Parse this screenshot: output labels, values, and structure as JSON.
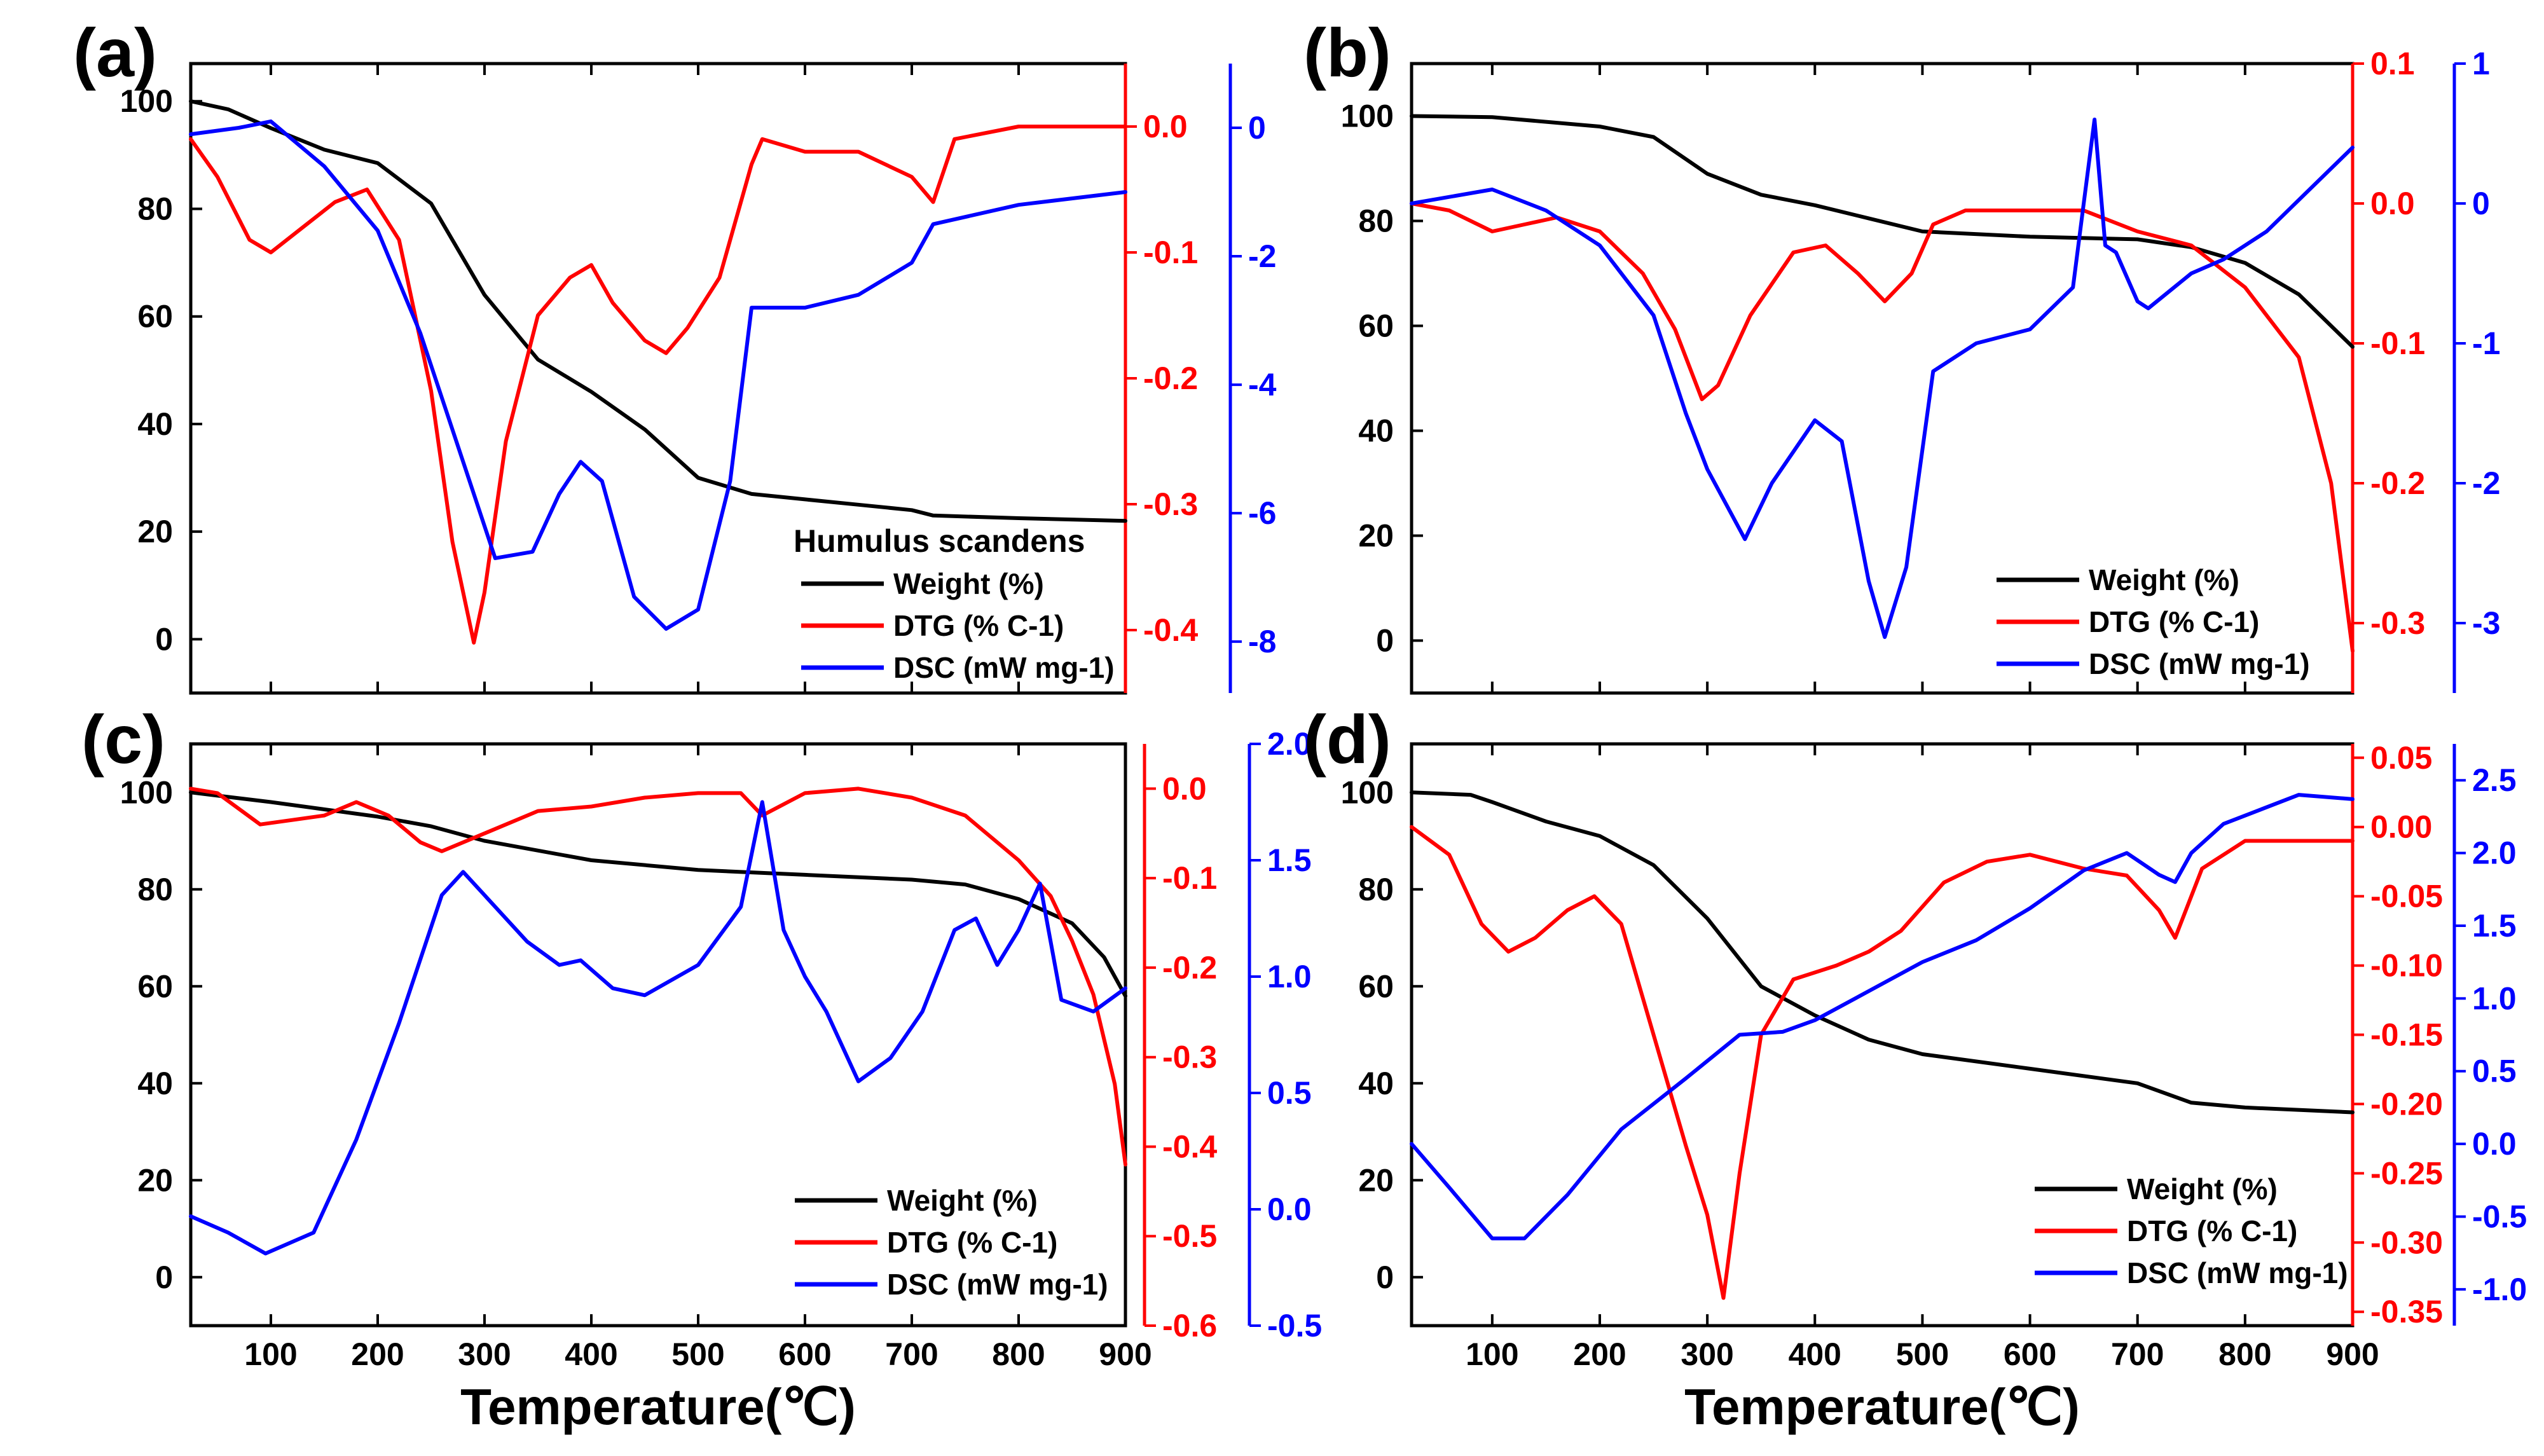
{
  "figure": {
    "x_title_left": "Temperature(℃)",
    "x_title_right": "Temperature(℃)"
  },
  "colors": {
    "weight": "#000000",
    "dtg": "#ff0000",
    "dsc": "#0000ff"
  },
  "chart_data": [
    {
      "type": "line",
      "panel": "(a)",
      "legend_title": "Humulus scandens",
      "legend": [
        "Weight (%)",
        "DTG (% C-1)",
        "DSC (mW mg-1)"
      ],
      "xlim": [
        25,
        900
      ],
      "x_ticks": [
        100,
        200,
        300,
        400,
        500,
        600,
        700,
        800,
        900
      ],
      "x_tick_labels": [],
      "left_axis": {
        "ylim": [
          -10,
          107
        ],
        "ticks": [
          0,
          20,
          40,
          60,
          80,
          100
        ]
      },
      "dtg_axis": {
        "ylim": [
          -0.45,
          0.05
        ],
        "ticks": [
          -0.4,
          -0.3,
          -0.2,
          -0.1,
          0.0
        ],
        "tick_labels": [
          "-0.4",
          "-0.3",
          "-0.2",
          "-0.1",
          "0.0"
        ]
      },
      "dsc_axis": {
        "ylim": [
          -8.8,
          1.0
        ],
        "ticks": [
          -8,
          -6,
          -4,
          -2,
          0
        ],
        "tick_labels": [
          "-8",
          "-6",
          "-4",
          "-2",
          "0"
        ]
      },
      "series": [
        {
          "name": "Weight (%)",
          "axis": "left",
          "x": [
            25,
            60,
            100,
            150,
            200,
            250,
            300,
            350,
            400,
            450,
            500,
            550,
            600,
            650,
            700,
            720,
            800,
            900
          ],
          "y": [
            100,
            98.5,
            95,
            91,
            88.5,
            81,
            64,
            52,
            46,
            39,
            30,
            27,
            26,
            25,
            24,
            23,
            22.5,
            22
          ]
        },
        {
          "name": "DTG (% C-1)",
          "axis": "dtg",
          "x": [
            25,
            50,
            80,
            100,
            130,
            160,
            190,
            220,
            250,
            270,
            290,
            300,
            320,
            350,
            380,
            400,
            420,
            450,
            470,
            490,
            520,
            550,
            560,
            600,
            650,
            700,
            720,
            740,
            800,
            900
          ],
          "y": [
            -0.01,
            -0.04,
            -0.09,
            -0.1,
            -0.08,
            -0.06,
            -0.05,
            -0.09,
            -0.21,
            -0.33,
            -0.41,
            -0.37,
            -0.25,
            -0.15,
            -0.12,
            -0.11,
            -0.14,
            -0.17,
            -0.18,
            -0.16,
            -0.12,
            -0.03,
            -0.01,
            -0.02,
            -0.02,
            -0.04,
            -0.06,
            -0.01,
            0.0,
            0.0
          ]
        },
        {
          "name": "DSC (mW mg-1)",
          "axis": "dsc",
          "x": [
            25,
            70,
            100,
            150,
            200,
            240,
            280,
            310,
            345,
            370,
            390,
            410,
            440,
            470,
            500,
            530,
            550,
            600,
            650,
            700,
            720,
            800,
            900
          ],
          "y": [
            -0.1,
            0.0,
            0.1,
            -0.6,
            -1.6,
            -3.2,
            -5.2,
            -6.7,
            -6.6,
            -5.7,
            -5.2,
            -5.5,
            -7.3,
            -7.8,
            -7.5,
            -5.5,
            -2.8,
            -2.8,
            -2.6,
            -2.1,
            -1.5,
            -1.2,
            -1.0
          ]
        }
      ]
    },
    {
      "type": "line",
      "panel": "(b)",
      "legend_title": "",
      "legend": [
        "Weight (%)",
        "DTG (% C-1)",
        "DSC (mW mg-1)"
      ],
      "xlim": [
        25,
        900
      ],
      "x_ticks": [
        100,
        200,
        300,
        400,
        500,
        600,
        700,
        800,
        900
      ],
      "x_tick_labels": [],
      "left_axis": {
        "ylim": [
          -10,
          110
        ],
        "ticks": [
          0,
          20,
          40,
          60,
          80,
          100
        ]
      },
      "dtg_axis": {
        "ylim": [
          -0.35,
          0.1
        ],
        "ticks": [
          -0.3,
          -0.2,
          -0.1,
          0.0,
          0.1
        ],
        "tick_labels": [
          "-0.3",
          "-0.2",
          "-0.1",
          "0.0",
          "0.1"
        ]
      },
      "dsc_axis": {
        "ylim": [
          -3.5,
          1.0
        ],
        "ticks": [
          -3,
          -2,
          -1,
          0,
          1
        ],
        "tick_labels": [
          "-3",
          "-2",
          "-1",
          "0",
          "1"
        ]
      },
      "series": [
        {
          "name": "Weight (%)",
          "axis": "left",
          "x": [
            25,
            100,
            200,
            250,
            300,
            350,
            400,
            450,
            500,
            600,
            700,
            750,
            800,
            850,
            900
          ],
          "y": [
            100,
            99.8,
            98,
            96,
            89,
            85,
            83,
            80.5,
            78,
            77,
            76.5,
            75,
            72,
            66,
            56
          ]
        },
        {
          "name": "DTG (% C-1)",
          "axis": "dtg",
          "x": [
            25,
            60,
            100,
            130,
            160,
            200,
            240,
            270,
            295,
            310,
            340,
            380,
            410,
            440,
            465,
            490,
            510,
            540,
            600,
            650,
            700,
            750,
            800,
            850,
            880,
            900
          ],
          "y": [
            0.0,
            -0.005,
            -0.02,
            -0.015,
            -0.01,
            -0.02,
            -0.05,
            -0.09,
            -0.14,
            -0.13,
            -0.08,
            -0.035,
            -0.03,
            -0.05,
            -0.07,
            -0.05,
            -0.015,
            -0.005,
            -0.005,
            -0.005,
            -0.02,
            -0.03,
            -0.06,
            -0.11,
            -0.2,
            -0.32
          ]
        },
        {
          "name": "DSC (mW mg-1)",
          "axis": "dsc",
          "x": [
            25,
            100,
            150,
            200,
            250,
            280,
            300,
            335,
            360,
            400,
            425,
            450,
            465,
            485,
            510,
            550,
            600,
            640,
            650,
            660,
            670,
            680,
            700,
            710,
            750,
            780,
            820,
            860,
            900
          ],
          "y": [
            0.0,
            0.1,
            -0.05,
            -0.3,
            -0.8,
            -1.5,
            -1.9,
            -2.4,
            -2.0,
            -1.55,
            -1.7,
            -2.7,
            -3.1,
            -2.6,
            -1.2,
            -1.0,
            -0.9,
            -0.6,
            0.0,
            0.6,
            -0.3,
            -0.35,
            -0.7,
            -0.75,
            -0.5,
            -0.4,
            -0.2,
            0.1,
            0.4
          ]
        }
      ]
    },
    {
      "type": "line",
      "panel": "(c)",
      "legend_title": "",
      "legend": [
        "Weight (%)",
        "DTG (% C-1)",
        "DSC (mW mg-1)"
      ],
      "xlim": [
        25,
        900
      ],
      "x_ticks": [
        100,
        200,
        300,
        400,
        500,
        600,
        700,
        800,
        900
      ],
      "x_tick_labels": [
        "100",
        "200",
        "300",
        "400",
        "500",
        "600",
        "700",
        "800",
        "900"
      ],
      "left_axis": {
        "ylim": [
          -10,
          110
        ],
        "ticks": [
          0,
          20,
          40,
          60,
          80,
          100
        ]
      },
      "dtg_axis": {
        "ylim": [
          -0.6,
          0.05
        ],
        "ticks": [
          -0.6,
          -0.5,
          -0.4,
          -0.3,
          -0.2,
          -0.1,
          0.0
        ],
        "tick_labels": [
          "-0.6",
          "-0.5",
          "-0.4",
          "-0.3",
          "-0.2",
          "-0.1",
          "0.0"
        ]
      },
      "dsc_axis": {
        "ylim": [
          -0.5,
          2.0
        ],
        "ticks": [
          -0.5,
          0.0,
          0.5,
          1.0,
          1.5,
          2.0
        ],
        "tick_labels": [
          "-0.5",
          "0.0",
          "0.5",
          "1.0",
          "1.5",
          "2.0"
        ]
      },
      "series": [
        {
          "name": "Weight (%)",
          "axis": "left",
          "x": [
            25,
            100,
            200,
            250,
            300,
            400,
            500,
            600,
            700,
            750,
            800,
            850,
            880,
            900
          ],
          "y": [
            100,
            98,
            95,
            93,
            90,
            86,
            84,
            83,
            82,
            81,
            78,
            73,
            66,
            58
          ]
        },
        {
          "name": "DTG (% C-1)",
          "axis": "dtg",
          "x": [
            25,
            50,
            90,
            120,
            150,
            180,
            210,
            240,
            260,
            300,
            350,
            400,
            450,
            500,
            540,
            560,
            600,
            650,
            700,
            750,
            800,
            830,
            850,
            870,
            890,
            900
          ],
          "y": [
            0.0,
            -0.005,
            -0.04,
            -0.035,
            -0.03,
            -0.015,
            -0.03,
            -0.06,
            -0.07,
            -0.05,
            -0.025,
            -0.02,
            -0.01,
            -0.005,
            -0.005,
            -0.03,
            -0.005,
            0.0,
            -0.01,
            -0.03,
            -0.08,
            -0.12,
            -0.17,
            -0.23,
            -0.33,
            -0.42
          ]
        },
        {
          "name": "DSC (mW mg-1)",
          "axis": "dsc",
          "x": [
            25,
            60,
            95,
            140,
            180,
            220,
            260,
            280,
            300,
            340,
            370,
            390,
            420,
            450,
            500,
            540,
            560,
            580,
            600,
            620,
            650,
            680,
            710,
            740,
            760,
            780,
            800,
            820,
            840,
            870,
            900
          ],
          "y": [
            -0.03,
            -0.1,
            -0.19,
            -0.1,
            0.3,
            0.8,
            1.35,
            1.45,
            1.35,
            1.15,
            1.05,
            1.07,
            0.95,
            0.92,
            1.05,
            1.3,
            1.75,
            1.2,
            1.0,
            0.85,
            0.55,
            0.65,
            0.85,
            1.2,
            1.25,
            1.05,
            1.2,
            1.4,
            0.9,
            0.85,
            0.95
          ]
        }
      ]
    },
    {
      "type": "line",
      "panel": "(d)",
      "legend_title": "",
      "legend": [
        "Weight (%)",
        "DTG (% C-1)",
        "DSC (mW mg-1)"
      ],
      "xlim": [
        25,
        900
      ],
      "x_ticks": [
        100,
        200,
        300,
        400,
        500,
        600,
        700,
        800,
        900
      ],
      "x_tick_labels": [
        "100",
        "200",
        "300",
        "400",
        "500",
        "600",
        "700",
        "800",
        "900"
      ],
      "left_axis": {
        "ylim": [
          -10,
          110
        ],
        "ticks": [
          0,
          20,
          40,
          60,
          80,
          100
        ]
      },
      "dtg_axis": {
        "ylim": [
          -0.36,
          0.06
        ],
        "ticks": [
          -0.35,
          -0.3,
          -0.25,
          -0.2,
          -0.15,
          -0.1,
          -0.05,
          0.0,
          0.05
        ],
        "tick_labels": [
          "-0.35",
          "-0.30",
          "-0.25",
          "-0.20",
          "-0.15",
          "-0.10",
          "-0.05",
          "0.00",
          "0.05"
        ]
      },
      "dsc_axis": {
        "ylim": [
          -1.25,
          2.75
        ],
        "ticks": [
          -1.0,
          -0.5,
          0.0,
          0.5,
          1.0,
          1.5,
          2.0,
          2.5
        ],
        "tick_labels": [
          "-1.0",
          "-0.5",
          "0.0",
          "0.5",
          "1.0",
          "1.5",
          "2.0",
          "2.5"
        ]
      },
      "series": [
        {
          "name": "Weight (%)",
          "axis": "left",
          "x": [
            25,
            80,
            100,
            150,
            200,
            250,
            300,
            350,
            400,
            450,
            500,
            600,
            700,
            750,
            800,
            900
          ],
          "y": [
            100,
            99.5,
            98,
            94,
            91,
            85,
            74,
            60,
            54,
            49,
            46,
            43,
            40,
            36,
            35,
            34
          ]
        },
        {
          "name": "DTG (% C-1)",
          "axis": "dtg",
          "x": [
            25,
            60,
            90,
            115,
            140,
            170,
            195,
            220,
            250,
            280,
            300,
            315,
            330,
            350,
            380,
            420,
            450,
            480,
            520,
            560,
            600,
            650,
            690,
            720,
            735,
            760,
            800,
            900
          ],
          "y": [
            0.0,
            -0.02,
            -0.07,
            -0.09,
            -0.08,
            -0.06,
            -0.05,
            -0.07,
            -0.15,
            -0.23,
            -0.28,
            -0.34,
            -0.25,
            -0.15,
            -0.11,
            -0.1,
            -0.09,
            -0.075,
            -0.04,
            -0.025,
            -0.02,
            -0.03,
            -0.035,
            -0.06,
            -0.08,
            -0.03,
            -0.01,
            -0.01
          ]
        },
        {
          "name": "DSC (mW mg-1)",
          "axis": "dsc",
          "x": [
            25,
            60,
            100,
            130,
            170,
            220,
            280,
            330,
            370,
            400,
            450,
            500,
            550,
            600,
            650,
            690,
            700,
            720,
            735,
            750,
            780,
            850,
            900
          ],
          "y": [
            0.0,
            -0.3,
            -0.65,
            -0.65,
            -0.35,
            0.1,
            0.45,
            0.75,
            0.77,
            0.85,
            1.05,
            1.25,
            1.4,
            1.62,
            1.88,
            2.0,
            1.95,
            1.85,
            1.8,
            2.0,
            2.2,
            2.4,
            2.37
          ]
        }
      ]
    }
  ]
}
